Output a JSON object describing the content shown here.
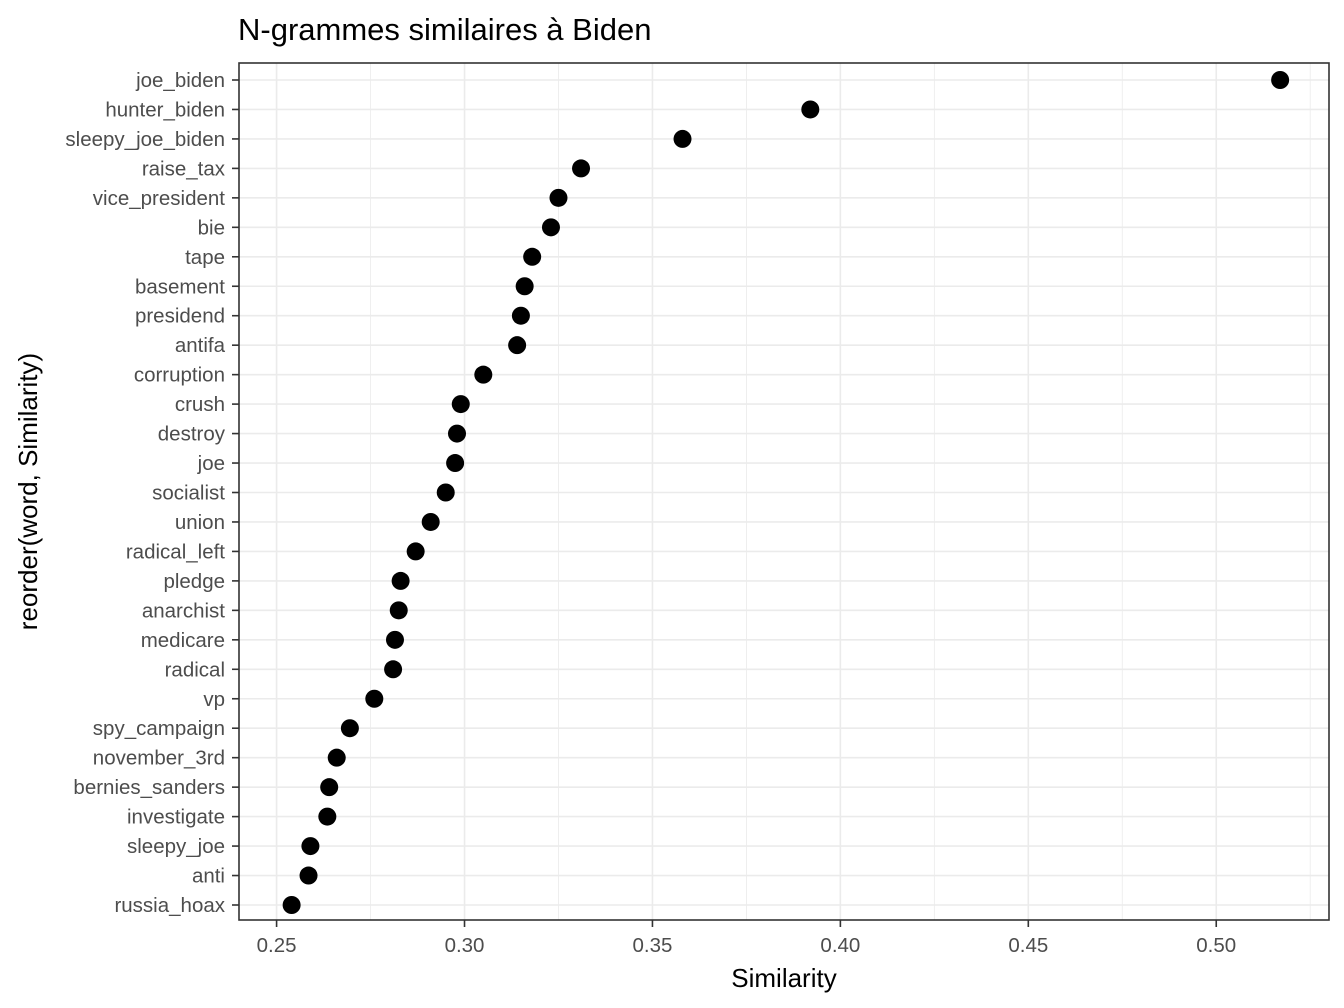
{
  "chart_data": {
    "type": "scatter",
    "title": "N-grammes similaires à Biden",
    "xlabel": "Similarity",
    "ylabel": "reorder(word, Similarity)",
    "xlim": [
      0.24,
      0.53
    ],
    "x_ticks": [
      0.25,
      0.3,
      0.35,
      0.4,
      0.45,
      0.5
    ],
    "x_tick_labels": [
      "0.25",
      "0.30",
      "0.35",
      "0.40",
      "0.45",
      "0.50"
    ],
    "grid": true,
    "theme": "bw",
    "point_color": "#000000",
    "points": [
      {
        "word": "joe_biden",
        "similarity": 0.517
      },
      {
        "word": "hunter_biden",
        "similarity": 0.392
      },
      {
        "word": "sleepy_joe_biden",
        "similarity": 0.358
      },
      {
        "word": "raise_tax",
        "similarity": 0.331
      },
      {
        "word": "vice_president",
        "similarity": 0.325
      },
      {
        "word": "bie",
        "similarity": 0.323
      },
      {
        "word": "tape",
        "similarity": 0.318
      },
      {
        "word": "basement",
        "similarity": 0.316
      },
      {
        "word": "presidend",
        "similarity": 0.315
      },
      {
        "word": "antifa",
        "similarity": 0.314
      },
      {
        "word": "corruption",
        "similarity": 0.305
      },
      {
        "word": "crush",
        "similarity": 0.299
      },
      {
        "word": "destroy",
        "similarity": 0.298
      },
      {
        "word": "joe",
        "similarity": 0.2975
      },
      {
        "word": "socialist",
        "similarity": 0.295
      },
      {
        "word": "union",
        "similarity": 0.291
      },
      {
        "word": "radical_left",
        "similarity": 0.287
      },
      {
        "word": "pledge",
        "similarity": 0.283
      },
      {
        "word": "anarchist",
        "similarity": 0.2825
      },
      {
        "word": "medicare",
        "similarity": 0.2815
      },
      {
        "word": "radical",
        "similarity": 0.281
      },
      {
        "word": "vp",
        "similarity": 0.276
      },
      {
        "word": "spy_campaign",
        "similarity": 0.2695
      },
      {
        "word": "november_3rd",
        "similarity": 0.266
      },
      {
        "word": "bernies_sanders",
        "similarity": 0.264
      },
      {
        "word": "investigate",
        "similarity": 0.2635
      },
      {
        "word": "sleepy_joe",
        "similarity": 0.259
      },
      {
        "word": "anti",
        "similarity": 0.2585
      },
      {
        "word": "russia_hoax",
        "similarity": 0.254
      }
    ]
  }
}
